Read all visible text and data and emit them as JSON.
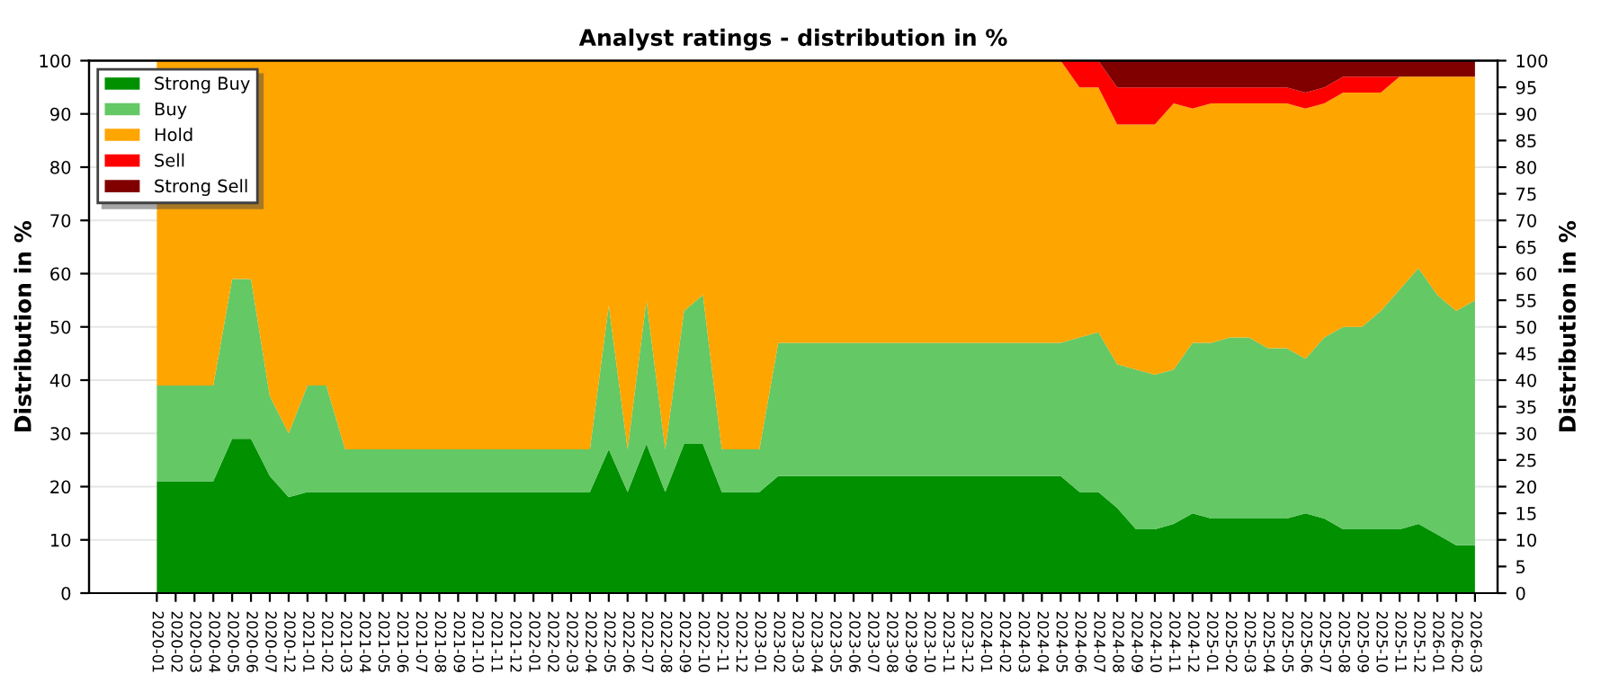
{
  "chart_data": {
    "type": "area",
    "stacked": true,
    "title": "Analyst ratings - distribution in %",
    "ylabel": "Distribution in %",
    "y2label": "Distribution in %",
    "categories": [
      "2020-01",
      "2020-02",
      "2020-03",
      "2020-04",
      "2020-05",
      "2020-06",
      "2020-07",
      "2020-12",
      "2021-01",
      "2021-02",
      "2021-03",
      "2021-04",
      "2021-05",
      "2021-06",
      "2021-07",
      "2021-08",
      "2021-09",
      "2021-10",
      "2021-11",
      "2021-12",
      "2022-01",
      "2022-02",
      "2022-03",
      "2022-04",
      "2022-05",
      "2022-06",
      "2022-07",
      "2022-08",
      "2022-09",
      "2022-10",
      "2022-11",
      "2022-12",
      "2023-01",
      "2023-02",
      "2023-03",
      "2023-04",
      "2023-05",
      "2023-06",
      "2023-07",
      "2023-08",
      "2023-09",
      "2023-10",
      "2023-11",
      "2023-12",
      "2024-01",
      "2024-02",
      "2024-03",
      "2024-04",
      "2024-05",
      "2024-06",
      "2024-07",
      "2024-08",
      "2024-09",
      "2024-10",
      "2024-11",
      "2024-12",
      "2025-01",
      "2025-02",
      "2025-03",
      "2025-04",
      "2025-05",
      "2025-06",
      "2025-07",
      "2025-08",
      "2025-09",
      "2025-10",
      "2025-11",
      "2025-12",
      "2026-01",
      "2026-02",
      "2026-03"
    ],
    "series": [
      {
        "name": "Strong Buy",
        "color": "#009000",
        "values": [
          21,
          21,
          21,
          21,
          29,
          29,
          22,
          18,
          19,
          19,
          19,
          19,
          19,
          19,
          19,
          19,
          19,
          19,
          19,
          19,
          19,
          19,
          19,
          19,
          27,
          19,
          28,
          19,
          28,
          28,
          19,
          19,
          19,
          22,
          22,
          22,
          22,
          22,
          22,
          22,
          22,
          22,
          22,
          22,
          22,
          22,
          22,
          22,
          22,
          19,
          19,
          16,
          12,
          12,
          13,
          15,
          14,
          14,
          14,
          14,
          14,
          15,
          14,
          12,
          12,
          12,
          12,
          13,
          11,
          9,
          9
        ]
      },
      {
        "name": "Buy",
        "color": "#64c864",
        "values": [
          18,
          18,
          18,
          18,
          30,
          30,
          15,
          12,
          20,
          20,
          8,
          8,
          8,
          8,
          8,
          8,
          8,
          8,
          8,
          8,
          8,
          8,
          8,
          8,
          27,
          8,
          27,
          8,
          25,
          28,
          8,
          8,
          8,
          25,
          25,
          25,
          25,
          25,
          25,
          25,
          25,
          25,
          25,
          25,
          25,
          25,
          25,
          25,
          25,
          29,
          30,
          27,
          30,
          29,
          29,
          32,
          33,
          34,
          34,
          32,
          32,
          29,
          34,
          38,
          38,
          41,
          45,
          48,
          45,
          44,
          46
        ]
      },
      {
        "name": "Hold",
        "color": "#ffa500",
        "values": [
          61,
          61,
          61,
          61,
          41,
          41,
          63,
          70,
          61,
          61,
          73,
          73,
          73,
          73,
          73,
          73,
          73,
          73,
          73,
          73,
          73,
          73,
          73,
          73,
          46,
          73,
          45,
          73,
          47,
          44,
          73,
          73,
          73,
          53,
          53,
          53,
          53,
          53,
          53,
          53,
          53,
          53,
          53,
          53,
          53,
          53,
          53,
          53,
          53,
          47,
          46,
          45,
          46,
          47,
          50,
          44,
          45,
          44,
          44,
          46,
          46,
          47,
          44,
          44,
          44,
          41,
          40,
          36,
          41,
          44,
          42
        ]
      },
      {
        "name": "Sell",
        "color": "#ff0000",
        "values": [
          0,
          0,
          0,
          0,
          0,
          0,
          0,
          0,
          0,
          0,
          0,
          0,
          0,
          0,
          0,
          0,
          0,
          0,
          0,
          0,
          0,
          0,
          0,
          0,
          0,
          0,
          0,
          0,
          0,
          0,
          0,
          0,
          0,
          0,
          0,
          0,
          0,
          0,
          0,
          0,
          0,
          0,
          0,
          0,
          0,
          0,
          0,
          0,
          0,
          5,
          5,
          7,
          7,
          7,
          3,
          4,
          3,
          3,
          3,
          3,
          3,
          3,
          3,
          3,
          3,
          3,
          0,
          0,
          0,
          0,
          0
        ]
      },
      {
        "name": "Strong Sell",
        "color": "#800000",
        "values": [
          0,
          0,
          0,
          0,
          0,
          0,
          0,
          0,
          0,
          0,
          0,
          0,
          0,
          0,
          0,
          0,
          0,
          0,
          0,
          0,
          0,
          0,
          0,
          0,
          0,
          0,
          0,
          0,
          0,
          0,
          0,
          0,
          0,
          0,
          0,
          0,
          0,
          0,
          0,
          0,
          0,
          0,
          0,
          0,
          0,
          0,
          0,
          0,
          0,
          0,
          0,
          5,
          5,
          5,
          5,
          5,
          5,
          5,
          5,
          5,
          5,
          6,
          5,
          3,
          3,
          3,
          3,
          3,
          3,
          3,
          3
        ]
      }
    ],
    "ylim": [
      0,
      100
    ],
    "yticks": [
      0,
      10,
      20,
      30,
      40,
      50,
      60,
      70,
      80,
      90,
      100
    ],
    "y2lim": [
      0,
      100
    ],
    "y2ticks": [
      0,
      5,
      10,
      15,
      20,
      25,
      30,
      35,
      40,
      45,
      50,
      55,
      60,
      65,
      70,
      75,
      80,
      85,
      90,
      95,
      100
    ],
    "grid": "y",
    "legend": "top left"
  }
}
